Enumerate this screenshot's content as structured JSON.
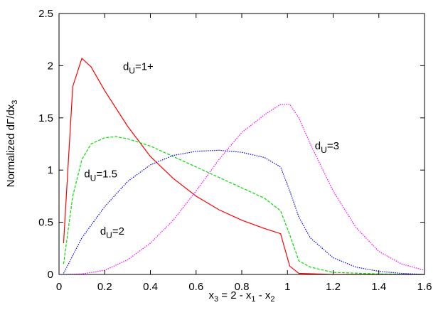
{
  "chart_data": {
    "type": "line",
    "xlabel": {
      "base": "x",
      "sub": "3",
      "rest1": " = 2 - x",
      "sub1": "1",
      "rest2": " - x",
      "sub2": "2"
    },
    "ylabel": {
      "text": "Normalized dΓ/dx",
      "sub": "3"
    },
    "xlim": [
      0,
      1.6
    ],
    "ylim": [
      0,
      2.5
    ],
    "xticks": [
      "0",
      "0.2",
      "0.4",
      "0.6",
      "0.8",
      "1",
      "1.2",
      "1.4",
      "1.6"
    ],
    "yticks": [
      "0",
      "0.5",
      "1",
      "1.5",
      "2",
      "2.5"
    ],
    "grid": false,
    "series": [
      {
        "name": "dU=1+",
        "label": {
          "d": "d",
          "sub": "U",
          "rest": "=1+"
        },
        "color": "#ff0000",
        "style": "solid",
        "x": [
          0.02,
          0.06,
          0.1,
          0.14,
          0.2,
          0.3,
          0.4,
          0.5,
          0.6,
          0.7,
          0.8,
          0.9,
          0.97,
          1.01,
          1.05,
          1.2,
          1.6
        ],
        "y": [
          0.3,
          1.8,
          2.07,
          1.99,
          1.76,
          1.42,
          1.13,
          0.92,
          0.75,
          0.62,
          0.52,
          0.44,
          0.39,
          0.08,
          0.01,
          0,
          0
        ]
      },
      {
        "name": "dU=1.5",
        "label": {
          "d": "d",
          "sub": "U",
          "rest": "=1.5"
        },
        "color": "#00dd00",
        "style": "dashed",
        "x": [
          0.02,
          0.06,
          0.1,
          0.14,
          0.2,
          0.25,
          0.3,
          0.4,
          0.5,
          0.6,
          0.7,
          0.8,
          0.9,
          0.97,
          1.01,
          1.05,
          1.1,
          1.2,
          1.4,
          1.6
        ],
        "y": [
          0.1,
          0.75,
          1.1,
          1.25,
          1.31,
          1.32,
          1.3,
          1.23,
          1.13,
          1.03,
          0.93,
          0.83,
          0.73,
          0.61,
          0.38,
          0.13,
          0.07,
          0.02,
          0.005,
          0
        ]
      },
      {
        "name": "dU=2",
        "label": {
          "d": "d",
          "sub": "U",
          "rest": "=2"
        },
        "color": "#0000ff",
        "style": "dotted",
        "x": [
          0.02,
          0.1,
          0.2,
          0.3,
          0.4,
          0.5,
          0.6,
          0.7,
          0.8,
          0.9,
          0.97,
          1.01,
          1.05,
          1.1,
          1.2,
          1.3,
          1.4,
          1.5,
          1.6
        ],
        "y": [
          0.01,
          0.35,
          0.65,
          0.89,
          1.05,
          1.14,
          1.18,
          1.19,
          1.17,
          1.12,
          1.03,
          0.8,
          0.55,
          0.35,
          0.16,
          0.07,
          0.03,
          0.01,
          0
        ]
      },
      {
        "name": "dU=3",
        "label": {
          "d": "d",
          "sub": "U",
          "rest": "=3"
        },
        "color": "#ff00ff",
        "style": "dotted",
        "x": [
          0.02,
          0.1,
          0.2,
          0.3,
          0.4,
          0.5,
          0.6,
          0.7,
          0.8,
          0.9,
          0.97,
          1.01,
          1.05,
          1.1,
          1.2,
          1.3,
          1.4,
          1.5,
          1.6
        ],
        "y": [
          0,
          0.005,
          0.04,
          0.14,
          0.3,
          0.52,
          0.8,
          1.1,
          1.36,
          1.53,
          1.63,
          1.63,
          1.5,
          1.25,
          0.8,
          0.45,
          0.22,
          0.1,
          0.04
        ]
      }
    ]
  }
}
